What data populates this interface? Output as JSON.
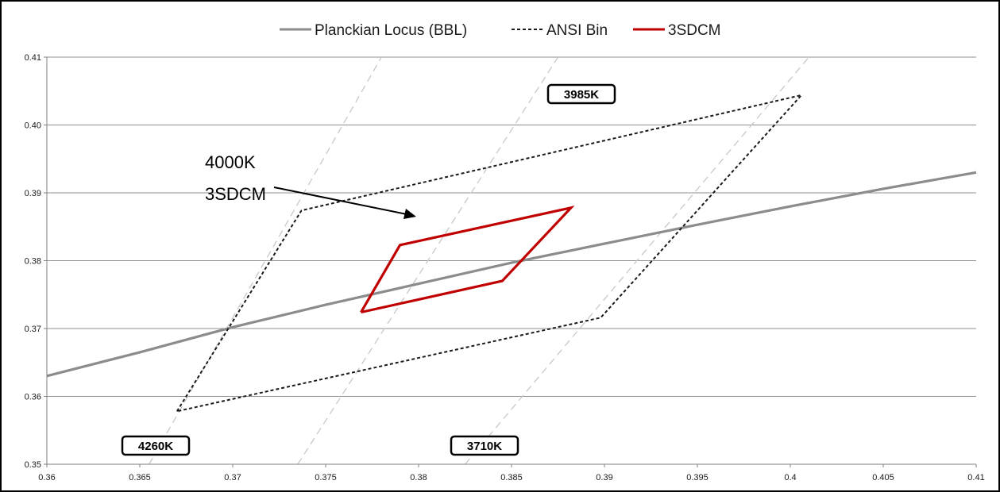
{
  "chart_data": {
    "type": "line",
    "xlim": [
      0.36,
      0.41
    ],
    "ylim": [
      0.35,
      0.41
    ],
    "x_ticks": [
      "0.36",
      "0.365",
      "0.37",
      "0.375",
      "0.38",
      "0.385",
      "0.39",
      "0.395",
      "0.4",
      "0.405",
      "0.41"
    ],
    "y_ticks": [
      "0.35",
      "0.36",
      "0.37",
      "0.38",
      "0.39",
      "0.40",
      "0.41"
    ],
    "grid": "horizontal",
    "legend_position": "top",
    "series": [
      {
        "name": "Planckian Locus (BBL)",
        "style": "solid",
        "color": "#8c8c8c",
        "points": [
          [
            0.36,
            0.363
          ],
          [
            0.365,
            0.3665
          ],
          [
            0.37,
            0.3702
          ],
          [
            0.375,
            0.3735
          ],
          [
            0.38,
            0.3766
          ],
          [
            0.385,
            0.3797
          ],
          [
            0.39,
            0.3825
          ],
          [
            0.395,
            0.3853
          ],
          [
            0.4,
            0.388
          ],
          [
            0.405,
            0.3906
          ],
          [
            0.41,
            0.393
          ]
        ]
      },
      {
        "name": "ANSI Bin",
        "style": "dashed",
        "color": "#1a1a1a",
        "points": [
          [
            0.367,
            0.3578
          ],
          [
            0.3737,
            0.3874
          ],
          [
            0.4006,
            0.4044
          ],
          [
            0.3898,
            0.3716
          ],
          [
            0.367,
            0.3578
          ]
        ]
      },
      {
        "name": "3SDCM",
        "style": "solid",
        "color": "#c00000",
        "points": [
          [
            0.3769,
            0.3724
          ],
          [
            0.379,
            0.3823
          ],
          [
            0.3882,
            0.3878
          ],
          [
            0.3845,
            0.377
          ],
          [
            0.3769,
            0.3724
          ]
        ]
      }
    ],
    "isotherms": [
      {
        "label": "4260K",
        "points": [
          [
            0.3655,
            0.35
          ],
          [
            0.378,
            0.41
          ]
        ]
      },
      {
        "label": "3985K",
        "points": [
          [
            0.3735,
            0.35
          ],
          [
            0.3875,
            0.41
          ]
        ]
      },
      {
        "label": "3710K",
        "points": [
          [
            0.3825,
            0.35
          ],
          [
            0.401,
            0.41
          ]
        ]
      }
    ],
    "isotherm_color": "#c8c8c8",
    "annotations": {
      "line1": "4000K",
      "line2": "3SDCM"
    }
  }
}
